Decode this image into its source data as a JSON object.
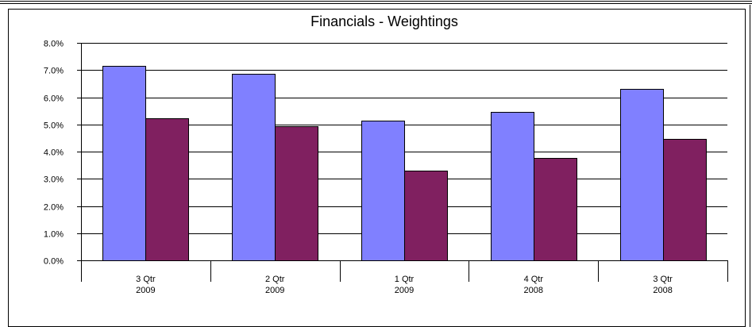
{
  "chart_data": {
    "type": "bar",
    "title": "Financials  -  Weightings",
    "xlabel": "",
    "ylabel": "",
    "categories": [
      [
        "3 Qtr",
        "2009"
      ],
      [
        "2 Qtr",
        "2009"
      ],
      [
        "1 Qtr",
        "2009"
      ],
      [
        "4 Qtr",
        "2008"
      ],
      [
        "3 Qtr",
        "2008"
      ]
    ],
    "series": [
      {
        "values": [
          7.15,
          6.85,
          5.15,
          5.45,
          6.32
        ],
        "color": "#8080FF"
      },
      {
        "values": [
          5.22,
          4.93,
          3.3,
          3.77,
          4.46
        ],
        "color": "#802060"
      }
    ],
    "ylim": [
      0,
      8
    ],
    "yticks": [
      "0.0%",
      "1.0%",
      "2.0%",
      "3.0%",
      "4.0%",
      "5.0%",
      "6.0%",
      "7.0%",
      "8.0%"
    ],
    "grid": true,
    "legend": "none"
  }
}
